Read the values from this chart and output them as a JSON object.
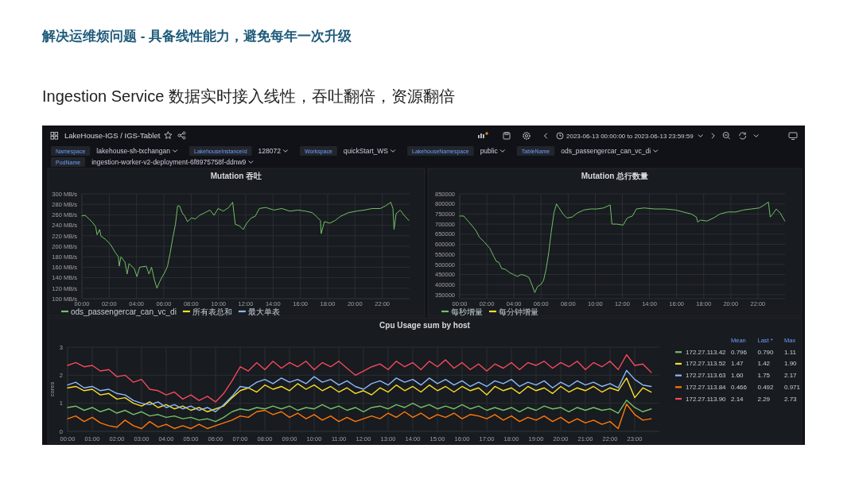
{
  "chart_data": [
    {
      "type": "other",
      "title": "解决运维烦问题 - 具备线性能力，避免每年一次升级",
      "subtitle": "Ingestion Service 数据实时接入线性，吞吐翻倍，资源翻倍",
      "annotations": [
        "LakeHouse-IGS / IGS-Tablet",
        "2023-06-13 00:00:00 to 2023-06-13 23:59:59",
        "Namespace",
        "lakehouse-sh-txchangan",
        "LakehouseInstanceId",
        "128072",
        "Workspace",
        "quickStart_WS",
        "LakehouseNamespace",
        "public",
        "TableName",
        "ods_passengercar_can_vc_di",
        "PodName",
        "ingestion-worker-v2-deployment-6f8975758f-ddnw9"
      ]
    },
    {
      "type": "line",
      "title": "Mutation 吞吐",
      "xlim": [
        0,
        24
      ],
      "xticks": [
        {
          "value": 0,
          "label": "00:00"
        },
        {
          "value": 2,
          "label": "02:00"
        },
        {
          "value": 4,
          "label": "04:00"
        },
        {
          "value": 6,
          "label": "06:00"
        },
        {
          "value": 8,
          "label": "08:00"
        },
        {
          "value": 10,
          "label": "10:00"
        },
        {
          "value": 12,
          "label": "12:00"
        },
        {
          "value": 14,
          "label": "14:00"
        },
        {
          "value": 16,
          "label": "16:00"
        },
        {
          "value": 18,
          "label": "18:00"
        },
        {
          "value": 20,
          "label": "20:00"
        },
        {
          "value": 22,
          "label": "22:00"
        }
      ],
      "ylim": [
        100,
        300
      ],
      "yticks": [
        {
          "value": 100,
          "label": "100 MB/s"
        },
        {
          "value": 120,
          "label": "120 MB/s"
        },
        {
          "value": 140,
          "label": "140 MB/s"
        },
        {
          "value": 160,
          "label": "160 MB/s"
        },
        {
          "value": 180,
          "label": "180 MB/s"
        },
        {
          "value": 200,
          "label": "200 MB/s"
        },
        {
          "value": 220,
          "label": "220 MB/s"
        },
        {
          "value": 240,
          "label": "240 MB/s"
        },
        {
          "value": 260,
          "label": "260 MB/s"
        },
        {
          "value": 280,
          "label": "280 MB/s"
        },
        {
          "value": 300,
          "label": "300 MB/s"
        }
      ],
      "grid": true,
      "legend": "bottom",
      "series": [
        {
          "name": "ods_passengercar_can_vc_di",
          "color": "#73bf69",
          "x": [
            0,
            0.23,
            0.53,
            0.82,
            1.01,
            1.11,
            1.3,
            1.4,
            1.69,
            2.08,
            2.47,
            2.67,
            2.73,
            2.86,
            3.15,
            3.31,
            3.45,
            3.84,
            4.03,
            4.23,
            4.71,
            4.91,
            5.1,
            5.3,
            5.49,
            5.69,
            5.88,
            6.07,
            6.27,
            6.46,
            6.66,
            6.85,
            7.01,
            7.15,
            7.34,
            7.54,
            7.73,
            8.02,
            8.31,
            8.61,
            9.0,
            9.38,
            9.68,
            9.97,
            10.36,
            10.75,
            11.04,
            11.23,
            11.53,
            11.82,
            12.07,
            12.4,
            12.69,
            12.99,
            13.47,
            14.06,
            14.64,
            15.23,
            15.81,
            16.39,
            16.88,
            17.17,
            17.47,
            17.52,
            17.76,
            18.15,
            18.54,
            18.93,
            19.51,
            20.09,
            20.68,
            21.26,
            21.85,
            22.24,
            22.62,
            22.78,
            22.86,
            23.01,
            23.31,
            23.6,
            23.95
          ],
          "values": [
            258,
            259,
            252,
            244,
            237,
            222,
            232,
            219,
            214,
            204,
            187,
            180,
            162,
            180,
            170,
            147,
            167,
            157,
            142,
            160,
            162,
            147,
            160,
            137,
            120,
            132,
            142,
            150,
            162,
            187,
            217,
            242,
            277,
            277,
            264,
            257,
            247,
            254,
            252,
            259,
            264,
            269,
            259,
            272,
            267,
            274,
            284,
            242,
            239,
            232,
            244,
            254,
            257,
            272,
            274,
            269,
            272,
            267,
            269,
            267,
            264,
            257,
            249,
            224,
            247,
            244,
            249,
            257,
            264,
            267,
            269,
            272,
            272,
            277,
            284,
            272,
            232,
            262,
            269,
            259,
            249
          ]
        },
        {
          "name": "所有表总和",
          "color": "#fade2a"
        },
        {
          "name": "最大单表",
          "color": "#8ab8ff"
        }
      ]
    },
    {
      "type": "line",
      "title": "Mutation 总行数量",
      "xlim": [
        0,
        24
      ],
      "xticks": [
        {
          "value": 0,
          "label": "00:00"
        },
        {
          "value": 2,
          "label": "02:00"
        },
        {
          "value": 4,
          "label": "04:00"
        },
        {
          "value": 6,
          "label": "06:00"
        },
        {
          "value": 8,
          "label": "08:00"
        },
        {
          "value": 10,
          "label": "10:00"
        },
        {
          "value": 12,
          "label": "12:00"
        },
        {
          "value": 14,
          "label": "14:00"
        },
        {
          "value": 16,
          "label": "16:00"
        },
        {
          "value": 18,
          "label": "18:00"
        },
        {
          "value": 20,
          "label": "20:00"
        },
        {
          "value": 22,
          "label": "22:00"
        }
      ],
      "ylim": [
        330000,
        850000
      ],
      "yticks": [
        350000,
        400000,
        450000,
        500000,
        550000,
        600000,
        650000,
        700000,
        750000,
        800000,
        850000
      ],
      "grid": true,
      "legend": "bottom",
      "series": [
        {
          "name": "每秒增量",
          "color": "#73bf69",
          "x": [
            0,
            0.29,
            0.68,
            1.06,
            1.22,
            1.45,
            1.83,
            2.22,
            2.51,
            2.7,
            2.89,
            3.09,
            3.38,
            3.67,
            3.96,
            4.25,
            4.53,
            4.82,
            5.11,
            5.35,
            5.54,
            5.73,
            5.98,
            6.18,
            6.37,
            6.56,
            6.75,
            6.95,
            7.14,
            7.33,
            7.62,
            7.91,
            8.3,
            8.68,
            9.17,
            9.65,
            10.13,
            10.61,
            11.1,
            11.23,
            11.58,
            12.06,
            12.35,
            12.74,
            13.03,
            13.6,
            14.38,
            15.15,
            15.92,
            16.5,
            17.08,
            17.46,
            17.56,
            17.75,
            18.24,
            18.72,
            19.2,
            19.78,
            20.36,
            20.94,
            21.52,
            22.1,
            22.48,
            22.77,
            22.91,
            23.1,
            23.35,
            23.64,
            23.99
          ],
          "values": [
            740000,
            740000,
            710000,
            680000,
            665000,
            635000,
            610000,
            580000,
            540000,
            515000,
            510000,
            480000,
            475000,
            460000,
            450000,
            440000,
            450000,
            445000,
            435000,
            395000,
            360000,
            390000,
            400000,
            420000,
            475000,
            555000,
            660000,
            755000,
            800000,
            780000,
            750000,
            730000,
            735000,
            755000,
            770000,
            775000,
            775000,
            780000,
            795000,
            700000,
            700000,
            695000,
            730000,
            740000,
            775000,
            780000,
            775000,
            775000,
            770000,
            760000,
            750000,
            735000,
            710000,
            720000,
            715000,
            730000,
            750000,
            760000,
            760000,
            770000,
            775000,
            780000,
            795000,
            810000,
            735000,
            750000,
            775000,
            755000,
            715000
          ]
        },
        {
          "name": "每分钟增量",
          "color": "#fade2a"
        }
      ]
    },
    {
      "type": "line",
      "title": "Cpu Usage sum by host",
      "ylabel": "cores",
      "xlim": [
        0,
        24
      ],
      "xticks": [
        {
          "value": 0,
          "label": "00:00"
        },
        {
          "value": 1,
          "label": "01:00"
        },
        {
          "value": 2,
          "label": "02:00"
        },
        {
          "value": 3,
          "label": "03:00"
        },
        {
          "value": 4,
          "label": "04:00"
        },
        {
          "value": 5,
          "label": "05:00"
        },
        {
          "value": 6,
          "label": "06:00"
        },
        {
          "value": 7,
          "label": "07:00"
        },
        {
          "value": 8,
          "label": "08:00"
        },
        {
          "value": 9,
          "label": "09:00"
        },
        {
          "value": 10,
          "label": "10:00"
        },
        {
          "value": 11,
          "label": "11:00"
        },
        {
          "value": 12,
          "label": "12:00"
        },
        {
          "value": 13,
          "label": "13:00"
        },
        {
          "value": 14,
          "label": "14:00"
        },
        {
          "value": 15,
          "label": "15:00"
        },
        {
          "value": 16,
          "label": "16:00"
        },
        {
          "value": 17,
          "label": "17:00"
        },
        {
          "value": 18,
          "label": "18:00"
        },
        {
          "value": 19,
          "label": "19:00"
        },
        {
          "value": 20,
          "label": "20:00"
        },
        {
          "value": 21,
          "label": "21:00"
        },
        {
          "value": 22,
          "label": "22:00"
        },
        {
          "value": 23,
          "label": "23:00"
        }
      ],
      "ylim": [
        0,
        3
      ],
      "yticks": [
        0,
        1,
        2,
        3
      ],
      "grid": true,
      "legend": "right",
      "annotations": [
        "Mean",
        "Last *",
        "Max",
        "0.796",
        "0.790",
        "1.11",
        "1.47",
        "1.42",
        "1.90",
        "1.60",
        "1.75",
        "2.17",
        "0.466",
        "0.492",
        "0.971",
        "2.14",
        "2.29",
        "2.73"
      ],
      "x": [
        0,
        0.33,
        0.67,
        1,
        1.33,
        1.67,
        2,
        2.33,
        2.67,
        3,
        3.33,
        3.67,
        4,
        4.33,
        4.67,
        5,
        5.33,
        5.67,
        6,
        6.33,
        6.67,
        7,
        7.33,
        7.67,
        8,
        8.33,
        8.67,
        9,
        9.33,
        9.67,
        10,
        10.33,
        10.67,
        11,
        11.33,
        11.67,
        12,
        12.33,
        12.67,
        13,
        13.33,
        13.67,
        14,
        14.33,
        14.67,
        15,
        15.33,
        15.67,
        16,
        16.33,
        16.67,
        17,
        17.33,
        17.67,
        18,
        18.33,
        18.67,
        19,
        19.33,
        19.67,
        20,
        20.33,
        20.67,
        21,
        21.33,
        21.67,
        22,
        22.33,
        22.67,
        23,
        23.33,
        23.67
      ],
      "series": [
        {
          "name": "172.27.113.42",
          "color": "#73bf69",
          "values": [
            0.85,
            0.9,
            0.75,
            0.85,
            0.7,
            0.8,
            0.65,
            0.75,
            0.6,
            0.7,
            0.55,
            0.6,
            0.5,
            0.55,
            0.45,
            0.5,
            0.4,
            0.45,
            0.35,
            0.5,
            0.7,
            0.8,
            0.75,
            0.85,
            0.8,
            0.9,
            0.8,
            0.9,
            0.75,
            0.85,
            0.8,
            0.95,
            0.8,
            0.9,
            0.75,
            0.85,
            0.7,
            0.85,
            0.9,
            0.8,
            0.95,
            0.85,
            1.0,
            0.85,
            0.95,
            0.8,
            0.9,
            0.8,
            0.95,
            0.8,
            0.9,
            0.75,
            0.85,
            0.75,
            0.85,
            0.7,
            0.85,
            0.75,
            0.9,
            0.8,
            0.85,
            0.7,
            0.85,
            0.75,
            0.85,
            0.75,
            0.8,
            0.65,
            1.11,
            0.85,
            0.7,
            0.8
          ]
        },
        {
          "name": "172.27.113.52",
          "color": "#fade2a",
          "values": [
            1.55,
            1.6,
            1.45,
            1.5,
            1.3,
            1.35,
            1.15,
            1.2,
            1.0,
            0.9,
            1.05,
            0.85,
            0.95,
            0.8,
            0.9,
            0.75,
            0.85,
            0.7,
            0.8,
            0.9,
            1.2,
            1.45,
            1.55,
            1.4,
            1.65,
            1.5,
            1.6,
            1.45,
            1.7,
            1.5,
            1.65,
            1.45,
            1.6,
            1.4,
            1.55,
            1.35,
            1.45,
            1.3,
            1.55,
            1.4,
            1.65,
            1.45,
            1.6,
            1.4,
            1.65,
            1.45,
            1.6,
            1.4,
            1.6,
            1.45,
            1.55,
            1.3,
            1.6,
            1.45,
            1.55,
            1.35,
            1.6,
            1.45,
            1.55,
            1.35,
            1.6,
            1.4,
            1.55,
            1.45,
            1.6,
            1.4,
            1.55,
            1.45,
            1.9,
            1.2,
            1.55,
            1.4
          ]
        },
        {
          "name": "172.27.113.63",
          "color": "#8ab8ff",
          "values": [
            1.65,
            1.75,
            1.55,
            1.6,
            1.45,
            1.5,
            1.35,
            1.3,
            1.1,
            1.0,
            0.95,
            1.05,
            0.85,
            0.95,
            0.8,
            0.9,
            0.75,
            0.85,
            0.7,
            0.95,
            1.25,
            1.6,
            1.55,
            1.75,
            1.85,
            1.7,
            1.9,
            1.75,
            1.85,
            1.7,
            1.95,
            1.75,
            1.85,
            1.65,
            1.8,
            1.6,
            1.5,
            1.7,
            1.8,
            1.65,
            1.9,
            1.75,
            1.85,
            1.65,
            1.9,
            1.7,
            1.85,
            1.65,
            1.8,
            1.6,
            1.75,
            1.6,
            1.8,
            1.7,
            1.85,
            1.6,
            1.75,
            1.65,
            1.8,
            1.55,
            1.75,
            1.6,
            1.8,
            1.65,
            1.75,
            1.6,
            1.7,
            1.55,
            2.17,
            1.85,
            1.65,
            1.6
          ]
        },
        {
          "name": "172.27.113.84",
          "color": "#ff780a",
          "values": [
            0.45,
            0.55,
            0.35,
            0.5,
            0.3,
            0.2,
            0.15,
            0.4,
            0.2,
            0.1,
            0.35,
            0.15,
            0.25,
            0.1,
            0.2,
            0.1,
            0.25,
            0.1,
            0.2,
            0.3,
            0.4,
            0.55,
            0.5,
            0.7,
            0.75,
            0.6,
            0.7,
            0.5,
            0.65,
            0.45,
            0.6,
            0.4,
            0.55,
            0.35,
            0.5,
            0.35,
            0.45,
            0.55,
            0.45,
            0.65,
            0.5,
            0.7,
            0.5,
            0.65,
            0.45,
            0.6,
            0.5,
            0.65,
            0.45,
            0.6,
            0.55,
            0.45,
            0.6,
            0.4,
            0.55,
            0.35,
            0.5,
            0.4,
            0.55,
            0.35,
            0.5,
            0.3,
            0.45,
            0.3,
            0.4,
            0.25,
            0.35,
            0.1,
            0.97,
            0.6,
            0.4,
            0.45
          ]
        },
        {
          "name": "172.27.113.90",
          "color": "#f2495c",
          "values": [
            2.35,
            2.45,
            2.3,
            2.35,
            2.15,
            2.2,
            1.95,
            2.0,
            1.75,
            1.85,
            1.5,
            1.45,
            1.3,
            1.4,
            1.15,
            1.3,
            1.1,
            1.25,
            1.05,
            1.35,
            1.8,
            2.3,
            2.15,
            2.45,
            2.2,
            2.5,
            2.25,
            2.45,
            2.3,
            2.5,
            2.2,
            2.45,
            2.3,
            2.5,
            2.25,
            2.0,
            2.15,
            2.3,
            2.4,
            2.2,
            2.5,
            2.3,
            2.45,
            2.2,
            2.5,
            2.3,
            2.55,
            2.25,
            2.45,
            2.2,
            2.4,
            2.15,
            2.4,
            2.25,
            2.45,
            2.2,
            2.45,
            2.35,
            2.5,
            2.25,
            2.45,
            2.3,
            2.5,
            2.2,
            2.45,
            2.3,
            2.5,
            2.2,
            2.73,
            2.35,
            2.4,
            2.1
          ]
        }
      ]
    }
  ]
}
